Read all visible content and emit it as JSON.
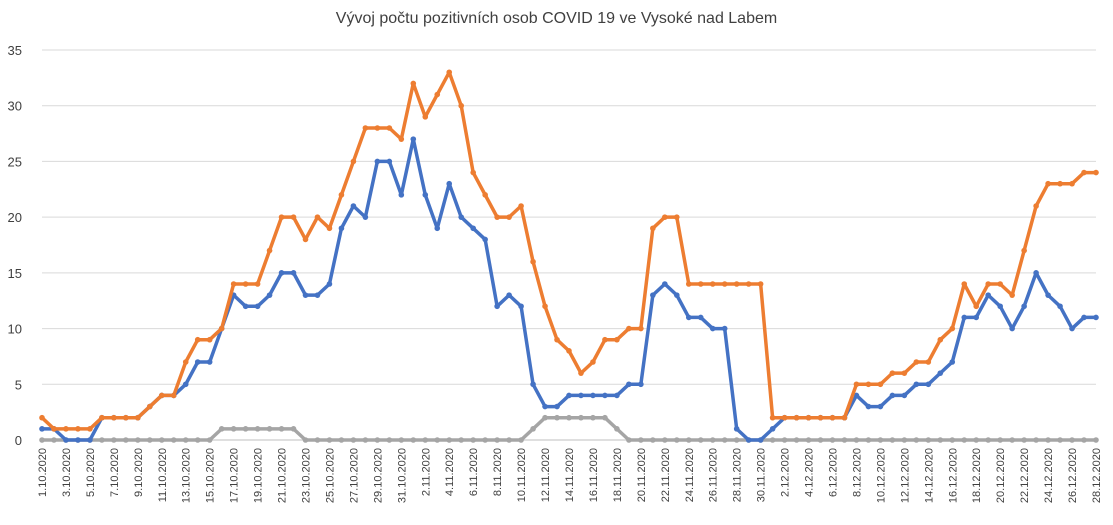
{
  "chart_data": {
    "type": "line",
    "title": "Vývoj počtu pozitivních osob COVID 19 ve Vysoké nad Labem",
    "xlabel": "",
    "ylabel": "",
    "ylim": [
      0,
      35
    ],
    "yticks": [
      "0",
      "5",
      "10",
      "15",
      "20",
      "25",
      "30",
      "35"
    ],
    "grid": true,
    "x": [
      "1.10.2020",
      "2.10.2020",
      "3.10.2020",
      "4.10.2020",
      "5.10.2020",
      "6.10.2020",
      "7.10.2020",
      "8.10.2020",
      "9.10.2020",
      "10.10.2020",
      "11.10.2020",
      "12.10.2020",
      "13.10.2020",
      "14.10.2020",
      "15.10.2020",
      "16.10.2020",
      "17.10.2020",
      "18.10.2020",
      "19.10.2020",
      "20.10.2020",
      "21.10.2020",
      "22.10.2020",
      "23.10.2020",
      "24.10.2020",
      "25.10.2020",
      "26.10.2020",
      "27.10.2020",
      "28.10.2020",
      "29.10.2020",
      "30.10.2020",
      "31.10.2020",
      "1.11.2020",
      "2.11.2020",
      "3.11.2020",
      "4.11.2020",
      "5.11.2020",
      "6.11.2020",
      "7.11.2020",
      "8.11.2020",
      "9.11.2020",
      "10.11.2020",
      "11.11.2020",
      "12.11.2020",
      "13.11.2020",
      "14.11.2020",
      "15.11.2020",
      "16.11.2020",
      "17.11.2020",
      "18.11.2020",
      "19.11.2020",
      "20.11.2020",
      "21.11.2020",
      "22.11.2020",
      "23.11.2020",
      "24.11.2020",
      "25.11.2020",
      "26.11.2020",
      "27.11.2020",
      "28.11.2020",
      "29.11.2020",
      "30.11.2020",
      "1.12.2020",
      "2.12.2020",
      "3.12.2020",
      "4.12.2020",
      "5.12.2020",
      "6.12.2020",
      "7.12.2020",
      "8.12.2020",
      "9.12.2020",
      "10.12.2020",
      "11.12.2020",
      "12.12.2020",
      "13.12.2020",
      "14.12.2020",
      "15.12.2020",
      "16.12.2020",
      "17.12.2020",
      "18.12.2020",
      "19.12.2020",
      "20.12.2020",
      "21.12.2020",
      "22.12.2020",
      "23.12.2020",
      "24.12.2020",
      "25.12.2020",
      "26.12.2020",
      "27.12.2020",
      "28.12.2020"
    ],
    "tick_labels": [
      "1.10.2020",
      "3.10.2020",
      "5.10.2020",
      "7.10.2020",
      "9.10.2020",
      "11.10.2020",
      "13.10.2020",
      "15.10.2020",
      "17.10.2020",
      "19.10.2020",
      "21.10.2020",
      "23.10.2020",
      "25.10.2020",
      "27.10.2020",
      "29.10.2020",
      "31.10.2020",
      "2.11.2020",
      "4.11.2020",
      "6.11.2020",
      "8.11.2020",
      "10.11.2020",
      "12.11.2020",
      "14.11.2020",
      "16.11.2020",
      "18.11.2020",
      "20.11.2020",
      "22.11.2020",
      "24.11.2020",
      "26.11.2020",
      "28.11.2020",
      "30.11.2020",
      "2.12.2020",
      "4.12.2020",
      "6.12.2020",
      "8.12.2020",
      "10.12.2020",
      "12.12.2020",
      "14.12.2020",
      "16.12.2020",
      "18.12.2020",
      "20.12.2020",
      "22.12.2020",
      "24.12.2020",
      "26.12.2020",
      "28.12.2020"
    ],
    "series": [
      {
        "color": "#4472C4",
        "values": [
          1,
          1,
          0,
          0,
          0,
          2,
          2,
          2,
          2,
          3,
          4,
          4,
          5,
          7,
          7,
          10,
          13,
          12,
          12,
          13,
          15,
          15,
          13,
          13,
          14,
          19,
          21,
          20,
          25,
          25,
          22,
          27,
          22,
          19,
          23,
          20,
          19,
          18,
          12,
          13,
          12,
          5,
          3,
          3,
          4,
          4,
          4,
          4,
          4,
          5,
          5,
          13,
          14,
          13,
          11,
          11,
          10,
          10,
          1,
          0,
          0,
          1,
          2,
          2,
          2,
          2,
          2,
          2,
          4,
          3,
          3,
          4,
          4,
          5,
          5,
          6,
          7,
          11,
          11,
          13,
          12,
          10,
          12,
          15,
          13,
          12,
          10,
          11,
          11
        ]
      },
      {
        "color": "#ED7D31",
        "values": [
          2,
          1,
          1,
          1,
          1,
          2,
          2,
          2,
          2,
          3,
          4,
          4,
          7,
          9,
          9,
          10,
          14,
          14,
          14,
          17,
          20,
          20,
          18,
          20,
          19,
          22,
          25,
          28,
          28,
          28,
          27,
          32,
          29,
          31,
          33,
          30,
          24,
          22,
          20,
          20,
          21,
          16,
          12,
          9,
          8,
          6,
          7,
          9,
          9,
          10,
          10,
          19,
          20,
          20,
          14,
          14,
          14,
          14,
          14,
          14,
          14,
          2,
          2,
          2,
          2,
          2,
          2,
          2,
          5,
          5,
          5,
          6,
          6,
          7,
          7,
          9,
          10,
          14,
          12,
          14,
          14,
          13,
          17,
          21,
          23,
          23,
          23,
          24,
          24
        ]
      },
      {
        "color": "#A5A5A5",
        "values": [
          0,
          0,
          0,
          0,
          0,
          0,
          0,
          0,
          0,
          0,
          0,
          0,
          0,
          0,
          0,
          1,
          1,
          1,
          1,
          1,
          1,
          1,
          0,
          0,
          0,
          0,
          0,
          0,
          0,
          0,
          0,
          0,
          0,
          0,
          0,
          0,
          0,
          0,
          0,
          0,
          0,
          1,
          2,
          2,
          2,
          2,
          2,
          2,
          1,
          0,
          0,
          0,
          0,
          0,
          0,
          0,
          0,
          0,
          0,
          0,
          0,
          0,
          0,
          0,
          0,
          0,
          0,
          0,
          0,
          0,
          0,
          0,
          0,
          0,
          0,
          0,
          0,
          0,
          0,
          0,
          0,
          0,
          0,
          0,
          0,
          0,
          0,
          0,
          0
        ]
      }
    ]
  }
}
